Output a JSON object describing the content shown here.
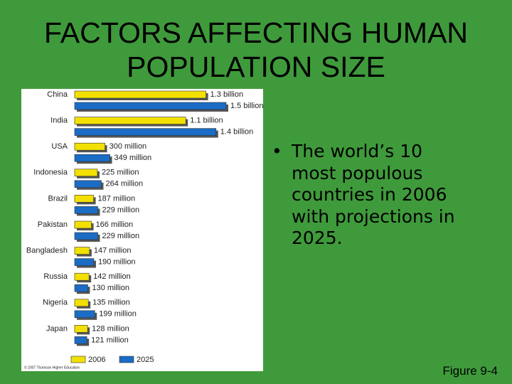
{
  "slide": {
    "title": "FACTORS AFFECTING HUMAN POPULATION SIZE",
    "bullet": "The world’s 10 most populous countries in 2006 with projections in 2025.",
    "figure_label": "Figure 9-4"
  },
  "chart_data": {
    "type": "hbar",
    "credit": "© 2007 Thomson Higher Education",
    "categories": [
      "China",
      "India",
      "USA",
      "Indonesia",
      "Brazil",
      "Pakistan",
      "Bangladesh",
      "Russia",
      "Nigeria",
      "Japan"
    ],
    "series": [
      {
        "name": "2006",
        "color": "#f2e100",
        "values": [
          1300,
          1100,
          300,
          225,
          187,
          166,
          147,
          142,
          135,
          128
        ],
        "value_labels": [
          "1.3 billion",
          "1.1 billion",
          "300 million",
          "225 million",
          "187 million",
          "166 million",
          "147 million",
          "142 million",
          "135 million",
          "128 million"
        ]
      },
      {
        "name": "2025",
        "color": "#1a6cc4",
        "values": [
          1500,
          1400,
          349,
          264,
          229,
          229,
          190,
          130,
          199,
          121
        ],
        "value_labels": [
          "1.5 billion",
          "1.4 billion",
          "349 million",
          "264 million",
          "229 million",
          "229 million",
          "190 million",
          "130 million",
          "199 million",
          "121 million"
        ]
      }
    ]
  }
}
